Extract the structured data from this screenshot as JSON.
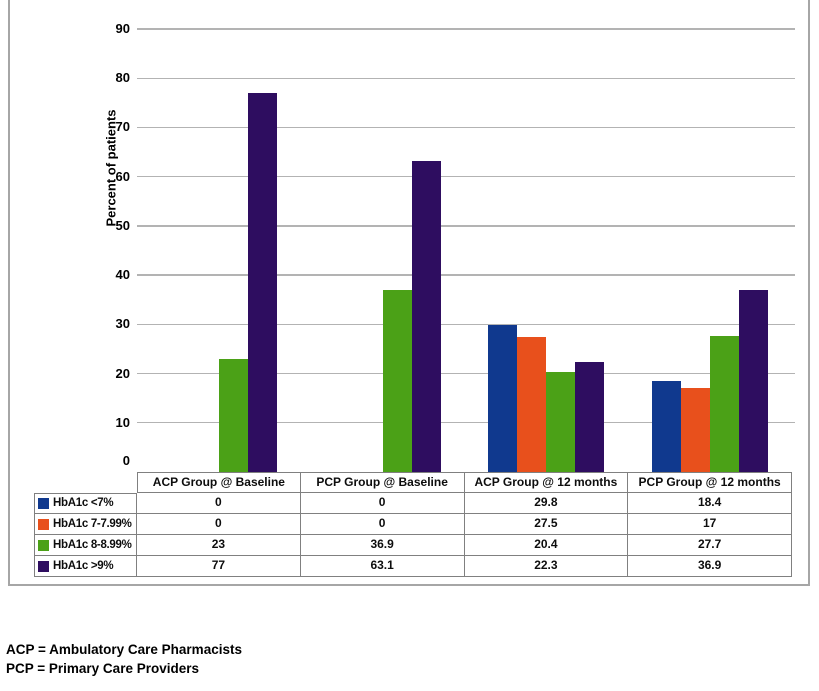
{
  "chart_data": {
    "type": "bar",
    "title": "",
    "xlabel": "",
    "ylabel": "Percent of patients",
    "ylim": [
      0,
      90
    ],
    "ytick_step": 10,
    "grid": true,
    "legend_position": "data-table-left",
    "data_table_shown": true,
    "categories": [
      "ACP Group @ Baseline",
      "PCP Group @ Baseline",
      "ACP Group @ 12 months",
      "PCP Group @ 12 months"
    ],
    "series": [
      {
        "name": "HbA1c <7%",
        "color": "#10398e",
        "values": [
          0,
          0,
          29.8,
          18.4
        ]
      },
      {
        "name": "HbA1c 7-7.99%",
        "color": "#e8501c",
        "values": [
          0,
          0,
          27.5,
          17
        ]
      },
      {
        "name": "HbA1c 8-8.99%",
        "color": "#4ba117",
        "values": [
          23,
          36.9,
          20.4,
          27.7
        ]
      },
      {
        "name": "HbA1c >9%",
        "color": "#2e0d60",
        "values": [
          77,
          63.1,
          22.3,
          36.9
        ]
      }
    ],
    "grid_color": "#b3b3b3",
    "frame_color": "#a6a6a6",
    "table_border_color": "#808080"
  },
  "footnotes": [
    "ACP = Ambulatory Care Pharmacists",
    "PCP = Primary Care Providers"
  ]
}
